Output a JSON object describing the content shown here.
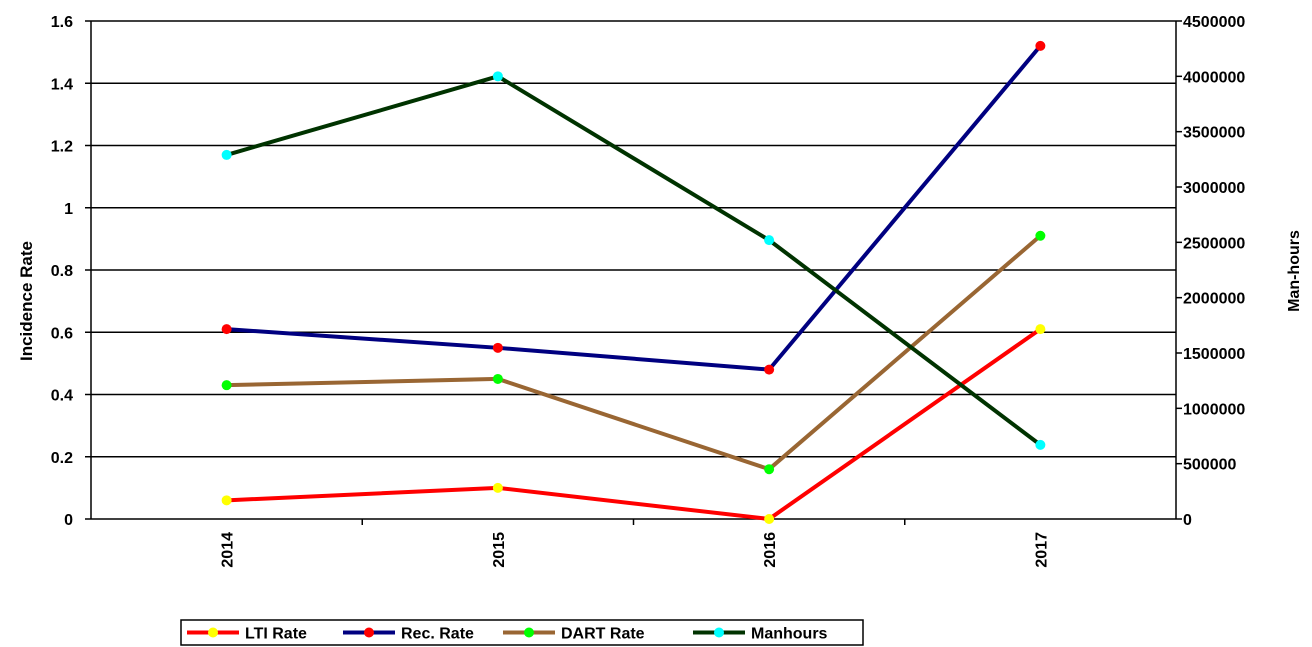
{
  "chart_data": {
    "type": "line",
    "categories": [
      "2014",
      "2015",
      "2016",
      "2017"
    ],
    "y_left": {
      "label": "Incidence Rate",
      "range": [
        0,
        1.6
      ],
      "ticks": [
        0,
        0.2,
        0.4,
        0.6,
        0.8,
        1,
        1.2,
        1.4,
        1.6
      ],
      "tick_labels": [
        "0",
        "0.2",
        "0.4",
        "0.6",
        "0.8",
        "1",
        "1.2",
        "1.4",
        "1.6"
      ]
    },
    "y_right": {
      "label": "Man-hours",
      "range": [
        0,
        4500000
      ],
      "ticks": [
        0,
        500000,
        1000000,
        1500000,
        2000000,
        2500000,
        3000000,
        3500000,
        4000000,
        4500000
      ],
      "tick_labels": [
        "0",
        "500000",
        "1000000",
        "1500000",
        "2000000",
        "2500000",
        "3000000",
        "3500000",
        "4000000",
        "4500000"
      ]
    },
    "series": [
      {
        "name": "LTI Rate",
        "axis": "left",
        "values": [
          0.06,
          0.1,
          0.0,
          0.61
        ],
        "line_color": "#ff0000",
        "marker_color": "#ffff00"
      },
      {
        "name": "Rec. Rate",
        "axis": "left",
        "values": [
          0.61,
          0.55,
          0.48,
          1.52
        ],
        "line_color": "#000080",
        "marker_color": "#ff0000"
      },
      {
        "name": "DART Rate",
        "axis": "left",
        "values": [
          0.43,
          0.45,
          0.16,
          0.91
        ],
        "line_color": "#996633",
        "marker_color": "#00ff00"
      },
      {
        "name": "Manhours",
        "axis": "right",
        "values": [
          3290000,
          4000000,
          2520000,
          670000
        ],
        "line_color": "#003300",
        "marker_color": "#00ffff"
      }
    ],
    "grid": true,
    "legend_position": "bottom-left"
  }
}
